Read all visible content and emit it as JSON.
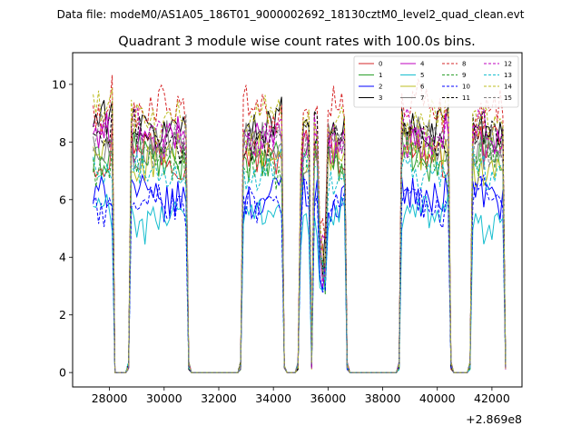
{
  "chart_data": {
    "type": "line",
    "suptitle": "Data file: modeM0/AS1A05_186T01_9000002692_18130cztM0_level2_quad_clean.evt",
    "title": "Quadrant 3 module wise count rates with 100.0s bins.",
    "xlabel": "",
    "ylabel": "",
    "x_offset_label": "+2.869e8",
    "xlim": [
      26650,
      43100
    ],
    "ylim": [
      -0.5,
      11.1
    ],
    "xticks": [
      28000,
      30000,
      32000,
      34000,
      36000,
      38000,
      40000,
      42000
    ],
    "xtick_labels": [
      "28000",
      "30000",
      "32000",
      "34000",
      "36000",
      "38000",
      "40000",
      "42000"
    ],
    "yticks": [
      0,
      2,
      4,
      6,
      8,
      10
    ],
    "ytick_labels": [
      "0",
      "2",
      "4",
      "6",
      "8",
      "10"
    ],
    "legend_position": "top-right",
    "bin_seconds": 100,
    "x_start": 27400,
    "x_step": 100,
    "segments": [
      {
        "start": 27400,
        "end": 28000,
        "peak": 28100
      },
      {
        "start": 28800,
        "end": 30800
      },
      {
        "start": 32900,
        "end": 34300
      },
      {
        "start": 35000,
        "end": 35300
      },
      {
        "start": 35500,
        "end": 36600,
        "dip": 35800
      },
      {
        "start": 38700,
        "end": 40400
      },
      {
        "start": 41300,
        "end": 42400
      }
    ],
    "series": [
      {
        "name": "0",
        "color": "#d62728",
        "dash": "solid",
        "level": 7.7
      },
      {
        "name": "1",
        "color": "#2ca02c",
        "dash": "solid",
        "level": 7.5
      },
      {
        "name": "2",
        "color": "#0000ff",
        "dash": "solid",
        "level": 6.2
      },
      {
        "name": "3",
        "color": "#000000",
        "dash": "solid",
        "level": 8.6
      },
      {
        "name": "4",
        "color": "#bf00bf",
        "dash": "solid",
        "level": 8.1
      },
      {
        "name": "5",
        "color": "#17becf",
        "dash": "solid",
        "level": 5.4
      },
      {
        "name": "6",
        "color": "#bcbd22",
        "dash": "solid",
        "level": 7.4
      },
      {
        "name": "7",
        "color": "#7f7f7f",
        "dash": "solid",
        "level": 7.8
      },
      {
        "name": "8",
        "color": "#d62728",
        "dash": "dashed",
        "level": 9.0
      },
      {
        "name": "9",
        "color": "#2ca02c",
        "dash": "dashed",
        "level": 7.3
      },
      {
        "name": "10",
        "color": "#0000ff",
        "dash": "dashed",
        "level": 5.9
      },
      {
        "name": "11",
        "color": "#000000",
        "dash": "dashed",
        "level": 8.2
      },
      {
        "name": "12",
        "color": "#bf00bf",
        "dash": "dashed",
        "level": 8.4
      },
      {
        "name": "13",
        "color": "#17becf",
        "dash": "dashed",
        "level": 7.0
      },
      {
        "name": "14",
        "color": "#bcbd22",
        "dash": "dashed",
        "level": 8.9
      },
      {
        "name": "15",
        "color": "#7f7f7f",
        "dash": "dashed",
        "level": 8.0
      }
    ]
  }
}
